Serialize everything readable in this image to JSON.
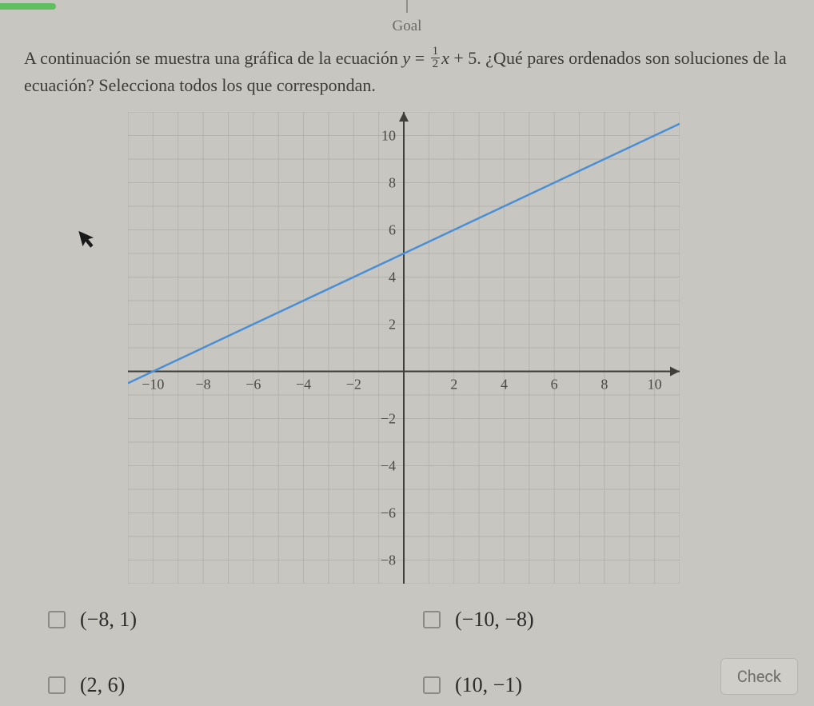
{
  "header": {
    "goal_label": "Goal"
  },
  "question": {
    "part1": "A continuación se muestra una gráfica de la ecuación ",
    "eq_lhs": "y",
    "eq_equals": " = ",
    "frac_num": "1",
    "frac_den": "2",
    "eq_var": "x",
    "eq_plus_const": " + 5",
    "part2": ". ¿Qué pares ordenados son soluciones de la ecuación? Selecciona todos los que correspondan."
  },
  "chart": {
    "type": "line",
    "xlim": [
      -11,
      11
    ],
    "ylim": [
      -9,
      11
    ],
    "xticks": [
      -10,
      -8,
      -6,
      -4,
      -2,
      2,
      4,
      6,
      8,
      10
    ],
    "yticks": [
      -8,
      -6,
      -4,
      -2,
      2,
      4,
      6,
      8,
      10
    ],
    "grid_minor_step": 1,
    "line_points": [
      [
        -11,
        -0.5
      ],
      [
        11,
        10.5
      ]
    ],
    "line_color": "#4a8fd6",
    "line_width": 2.5,
    "axis_color": "#3f3f3c",
    "grid_color": "#a9a8a2",
    "background_color": "#c8c6c0",
    "tick_fontsize": 18,
    "arrowheads": true
  },
  "options": [
    {
      "label": "(−8, 1)",
      "checked": false
    },
    {
      "label": "(−10, −8)",
      "checked": false
    },
    {
      "label": "(2, 6)",
      "checked": false
    },
    {
      "label": "(10, −1)",
      "checked": false
    }
  ],
  "buttons": {
    "check": "Check"
  }
}
